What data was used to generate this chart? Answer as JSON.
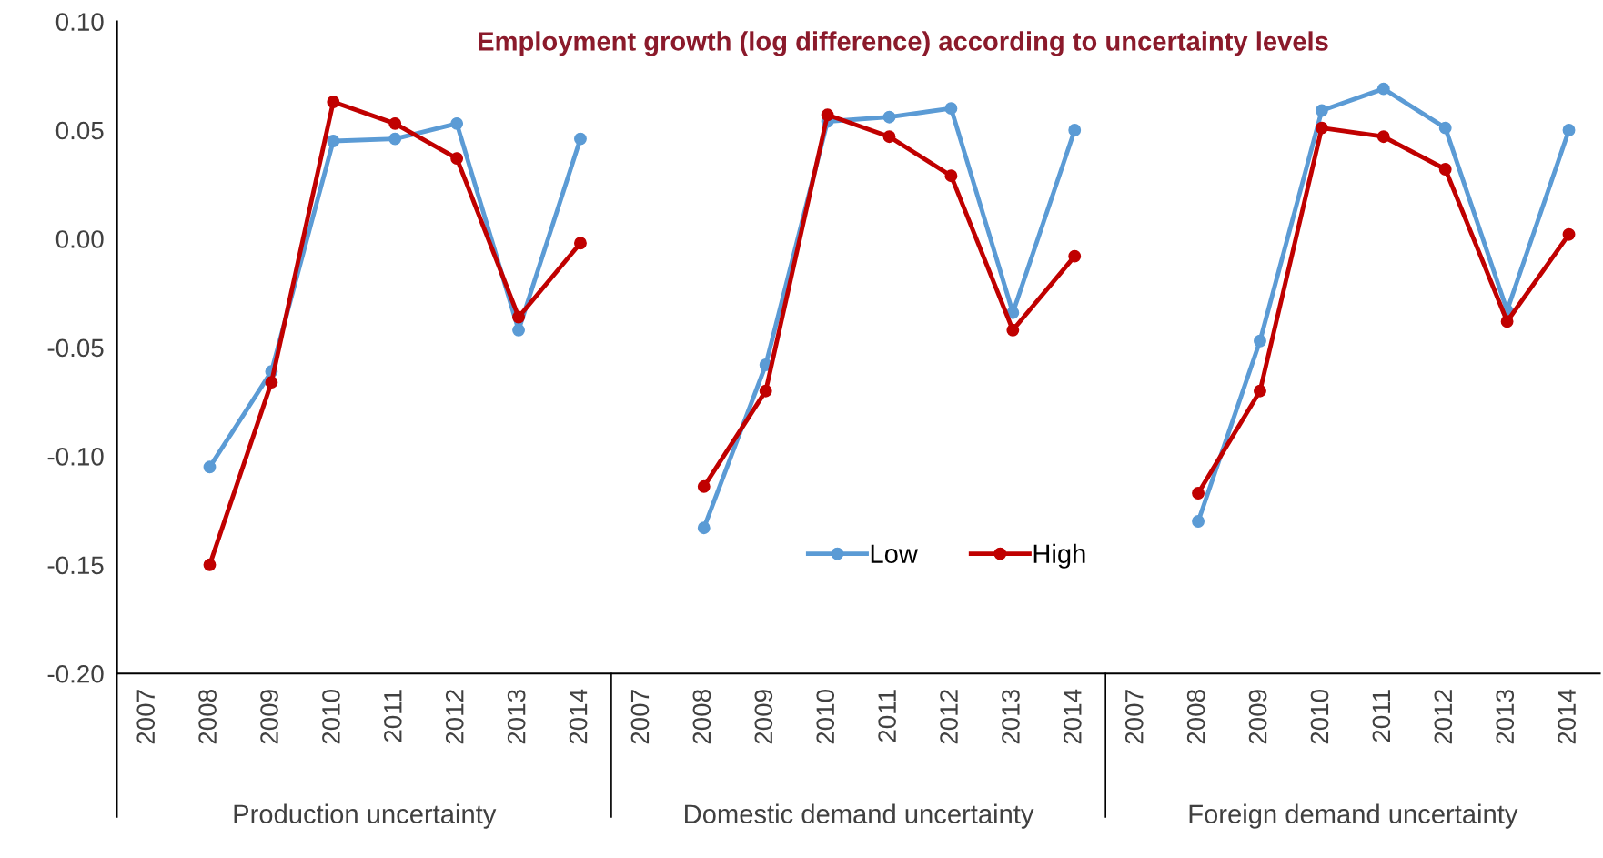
{
  "chart_data": {
    "type": "line",
    "title": "Employment growth (log difference) according to uncertainty levels",
    "categories": [
      "2007",
      "2008",
      "2009",
      "2010",
      "2011",
      "2012",
      "2013",
      "2014",
      "2007",
      "2008",
      "2009",
      "2010",
      "2011",
      "2012",
      "2013",
      "2014",
      "2007",
      "2008",
      "2009",
      "2010",
      "2011",
      "2012",
      "2013",
      "2014"
    ],
    "series": [
      {
        "name": "Low",
        "color": "#5b9bd5",
        "values": [
          null,
          -0.105,
          -0.061,
          0.045,
          0.046,
          0.053,
          -0.042,
          0.046,
          null,
          -0.133,
          -0.058,
          0.054,
          0.056,
          0.06,
          -0.034,
          0.05,
          null,
          -0.13,
          -0.047,
          0.059,
          0.069,
          0.051,
          -0.033,
          0.05
        ]
      },
      {
        "name": "High",
        "color": "#c00000",
        "values": [
          null,
          -0.15,
          -0.066,
          0.063,
          0.053,
          0.037,
          -0.036,
          -0.002,
          null,
          -0.114,
          -0.07,
          0.057,
          0.047,
          0.029,
          -0.042,
          -0.008,
          null,
          -0.117,
          -0.07,
          0.051,
          0.047,
          0.032,
          -0.038,
          0.002
        ]
      }
    ],
    "annotations": [
      "Production uncertainty",
      "Domestic demand uncertainty",
      "Foreign demand uncertainty"
    ],
    "ylim": [
      -0.2,
      0.1
    ],
    "yticks": [
      {
        "value": -0.2,
        "label": "-0.20"
      },
      {
        "value": -0.15,
        "label": "-0.15"
      },
      {
        "value": -0.1,
        "label": "-0.10"
      },
      {
        "value": -0.05,
        "label": "-0.05"
      },
      {
        "value": 0,
        "label": "0.00"
      },
      {
        "value": 0.05,
        "label": "0.05"
      },
      {
        "value": 0.1,
        "label": "0.10"
      }
    ],
    "grid": false,
    "legend": "center",
    "marker": "circle",
    "line_style": "solid"
  }
}
